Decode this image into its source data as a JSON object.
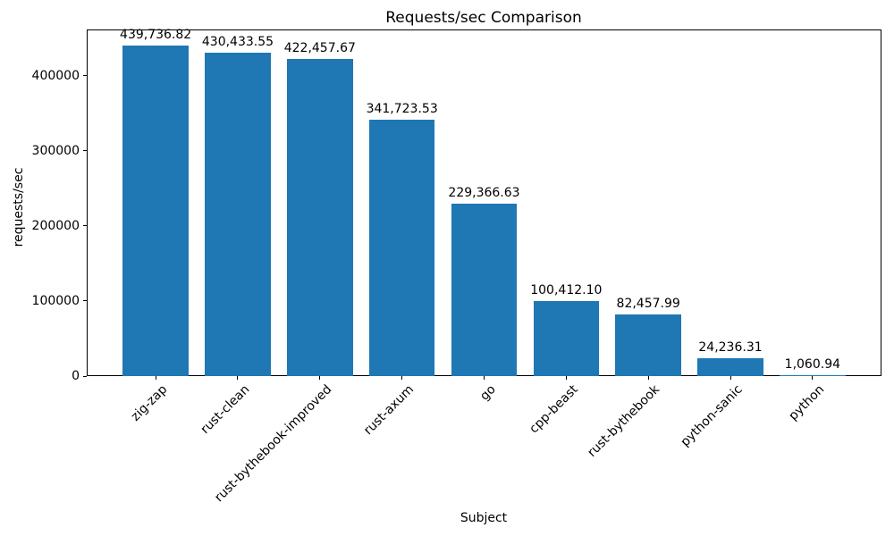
{
  "chart_data": {
    "type": "bar",
    "title": "Requests/sec Comparison",
    "xlabel": "Subject",
    "ylabel": "requests/sec",
    "categories": [
      "zig-zap",
      "rust-clean",
      "rust-bythebook-improved",
      "rust-axum",
      "go",
      "cpp-beast",
      "rust-bythebook",
      "python-sanic",
      "python"
    ],
    "values": [
      439736.82,
      430433.55,
      422457.67,
      341723.53,
      229366.63,
      100412.1,
      82457.99,
      24236.31,
      1060.94
    ],
    "value_labels": [
      "439,736.82",
      "430,433.55",
      "422,457.67",
      "341,723.53",
      "229,366.63",
      "100,412.10",
      "82,457.99",
      "24,236.31",
      "1,060.94"
    ],
    "yticks": [
      0,
      100000,
      200000,
      300000,
      400000
    ],
    "ytick_labels": [
      "0",
      "100000",
      "200000",
      "300000",
      "400000"
    ],
    "ylim": [
      0,
      461723.66
    ],
    "bar_color": "#1f77b4",
    "grid": false,
    "legend": null
  }
}
